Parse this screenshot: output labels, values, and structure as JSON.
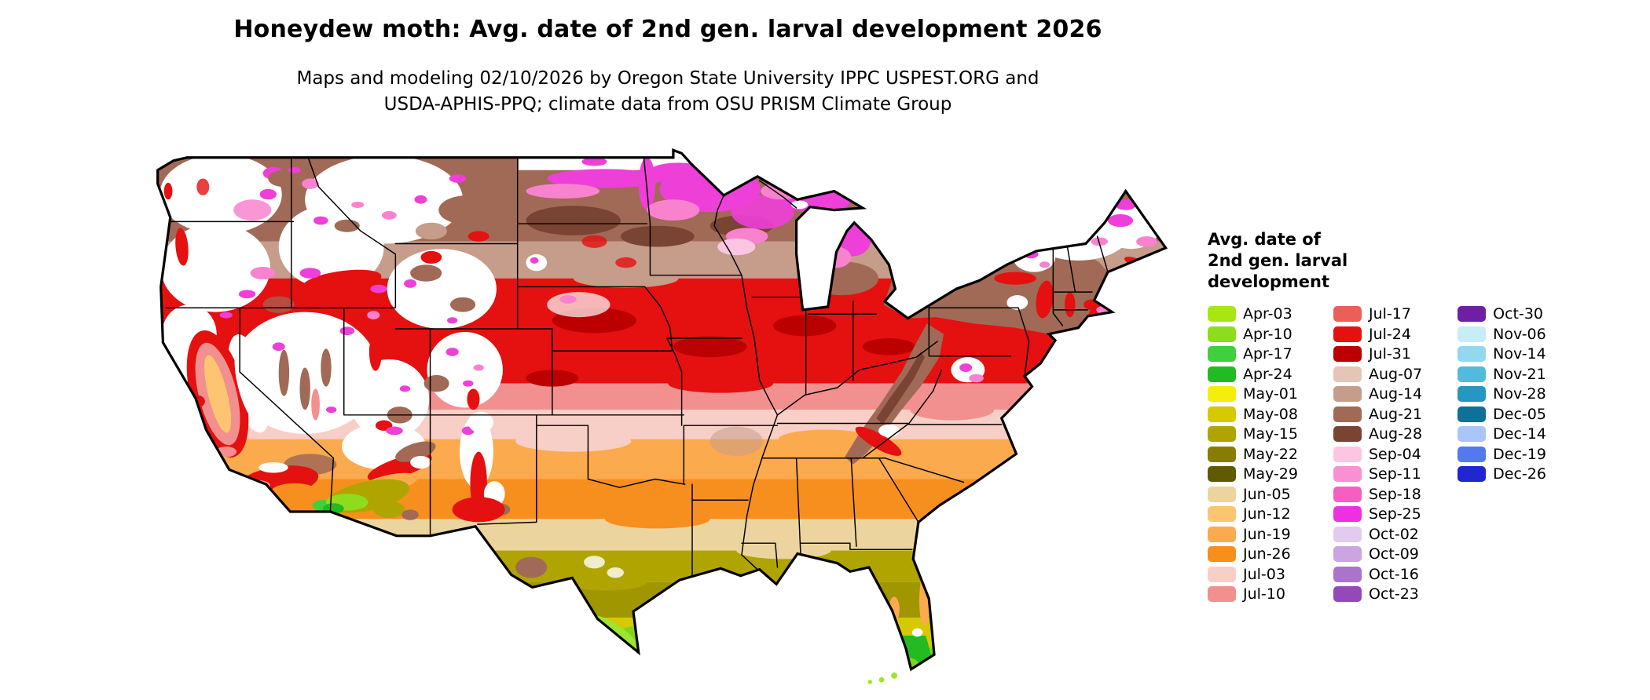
{
  "header": {
    "title": "Honeydew moth: Avg. date of 2nd gen. larval development 2026",
    "subtitle_line1": "Maps and modeling 02/10/2026 by Oregon State University IPPC USPEST.ORG and",
    "subtitle_line2": "USDA-APHIS-PPQ; climate data from OSU PRISM Climate Group"
  },
  "map": {
    "region": "Contiguous United States",
    "type": "choropleth",
    "no_data_color": "#ffffff",
    "outline_color": "#000000"
  },
  "legend": {
    "title_lines": [
      "Avg. date of",
      "2nd gen. larval",
      "development"
    ],
    "columns": [
      {
        "entries": [
          {
            "label": "Apr-03",
            "color": "#a8e612"
          },
          {
            "label": "Apr-10",
            "color": "#8fdc1f"
          },
          {
            "label": "Apr-17",
            "color": "#3fcf3f"
          },
          {
            "label": "Apr-24",
            "color": "#22bb22"
          },
          {
            "label": "May-01",
            "color": "#f5ee0a"
          },
          {
            "label": "May-08",
            "color": "#d6c900"
          },
          {
            "label": "May-15",
            "color": "#b0a500"
          },
          {
            "label": "May-22",
            "color": "#877e00"
          },
          {
            "label": "May-29",
            "color": "#5f5900"
          },
          {
            "label": "Jun-05",
            "color": "#ecd49e"
          },
          {
            "label": "Jun-12",
            "color": "#fdc571"
          },
          {
            "label": "Jun-19",
            "color": "#fbaa4e"
          },
          {
            "label": "Jun-26",
            "color": "#f78f1e"
          },
          {
            "label": "Jul-03",
            "color": "#f8cfc6"
          },
          {
            "label": "Jul-10",
            "color": "#f29090"
          }
        ]
      },
      {
        "entries": [
          {
            "label": "Jul-17",
            "color": "#ec5f58"
          },
          {
            "label": "Jul-24",
            "color": "#e51010"
          },
          {
            "label": "Jul-31",
            "color": "#bc0000"
          },
          {
            "label": "Aug-07",
            "color": "#e5c5b5"
          },
          {
            "label": "Aug-14",
            "color": "#c69c8a"
          },
          {
            "label": "Aug-21",
            "color": "#a06a56"
          },
          {
            "label": "Aug-28",
            "color": "#7a4434"
          },
          {
            "label": "Sep-04",
            "color": "#fcc6e2"
          },
          {
            "label": "Sep-11",
            "color": "#fa90d2"
          },
          {
            "label": "Sep-18",
            "color": "#f75ec2"
          },
          {
            "label": "Sep-25",
            "color": "#ef2fe2"
          },
          {
            "label": "Oct-02",
            "color": "#e2cbee"
          },
          {
            "label": "Oct-09",
            "color": "#cba4e2"
          },
          {
            "label": "Oct-16",
            "color": "#ab73cc"
          },
          {
            "label": "Oct-23",
            "color": "#9349bb"
          }
        ]
      },
      {
        "entries": [
          {
            "label": "Oct-30",
            "color": "#6e1fa6"
          },
          {
            "label": "Nov-06",
            "color": "#c6edf8"
          },
          {
            "label": "Nov-14",
            "color": "#90d9ee"
          },
          {
            "label": "Nov-21",
            "color": "#52bbdd"
          },
          {
            "label": "Nov-28",
            "color": "#2597c2"
          },
          {
            "label": "Dec-05",
            "color": "#0f7099"
          },
          {
            "label": "Dec-14",
            "color": "#aac6f8"
          },
          {
            "label": "Dec-19",
            "color": "#5279ee"
          },
          {
            "label": "Dec-26",
            "color": "#2026d2"
          }
        ]
      }
    ]
  }
}
